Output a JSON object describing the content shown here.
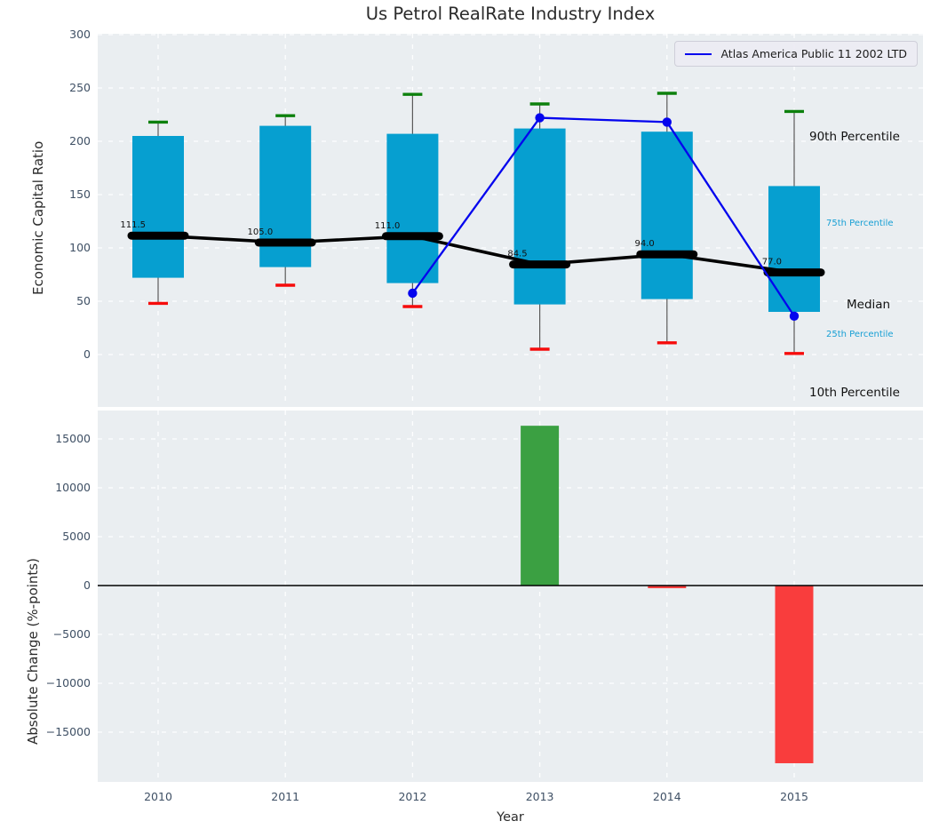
{
  "title": "Us Petrol RealRate Industry Index",
  "legend": {
    "label": "Atlas America Public 11 2002 LTD"
  },
  "annotations": [
    {
      "key": "p90",
      "label": "90th Percentile",
      "style": "big"
    },
    {
      "key": "p75",
      "label": "75th Percentile",
      "style": "small"
    },
    {
      "key": "median",
      "label": "Median",
      "style": "big"
    },
    {
      "key": "p25",
      "label": "25th Percentile",
      "style": "small"
    },
    {
      "key": "p10",
      "label": "10th Percentile",
      "style": "big"
    }
  ],
  "colors": {
    "axes_bg": "#eaeef1",
    "grid": "#ffffff",
    "box_bar": "#069fd0",
    "whisker": "#5a5a5a",
    "cap_high": "#0c800c",
    "cap_low": "#f60b0b",
    "median_line": "#000000",
    "company_line": "#0404ee",
    "positive_bar": "#3ba042",
    "negative_bar": "#f93d3d",
    "tick_text": "#3f5065",
    "cyan_text": "#179fd4"
  },
  "chart_data": [
    {
      "type": "boxbar+line",
      "title": "Us Petrol RealRate Industry Index",
      "xlabel": "Year",
      "ylabel": "Economic Capital Ratio",
      "categories": [
        2010,
        2011,
        2012,
        2013,
        2014,
        2015
      ],
      "yticks": [
        0,
        50,
        100,
        150,
        200,
        250,
        300
      ],
      "ylim": [
        -50,
        302
      ],
      "grid": true,
      "legend_position": "upper right",
      "series": [
        {
          "name": "90th percentile",
          "values": [
            218,
            224,
            244,
            235,
            245,
            228
          ]
        },
        {
          "name": "75th percentile",
          "values": [
            205,
            214.5,
            207,
            212,
            209,
            158
          ]
        },
        {
          "name": "median",
          "values": [
            111.5,
            105.0,
            111.0,
            84.5,
            94.0,
            77.0
          ]
        },
        {
          "name": "25th percentile",
          "values": [
            72,
            82,
            67,
            47,
            52,
            40
          ]
        },
        {
          "name": "10th percentile",
          "values": [
            48,
            65,
            45,
            5,
            11,
            1
          ]
        },
        {
          "name": "Atlas America Public 11 2002 LTD",
          "values": [
            null,
            null,
            57.5,
            222,
            218,
            36
          ]
        }
      ],
      "median_labels": [
        "111.5",
        "105.0",
        "111.0",
        "84.5",
        "94.0",
        "77.0"
      ]
    },
    {
      "type": "bar",
      "xlabel": "Year",
      "ylabel": "Absolute Change (%-points)",
      "categories": [
        2010,
        2011,
        2012,
        2013,
        2014,
        2015
      ],
      "values": [
        null,
        null,
        null,
        16350,
        -270,
        -18180
      ],
      "ytick_labels": [
        "15000",
        "10000",
        "5000",
        "0",
        "−5000",
        "−10000",
        "−15000"
      ],
      "ytick_values": [
        15000,
        10000,
        5000,
        0,
        -5000,
        -10000,
        -15000
      ],
      "ylim": [
        -20100,
        18100
      ],
      "grid": true
    }
  ]
}
